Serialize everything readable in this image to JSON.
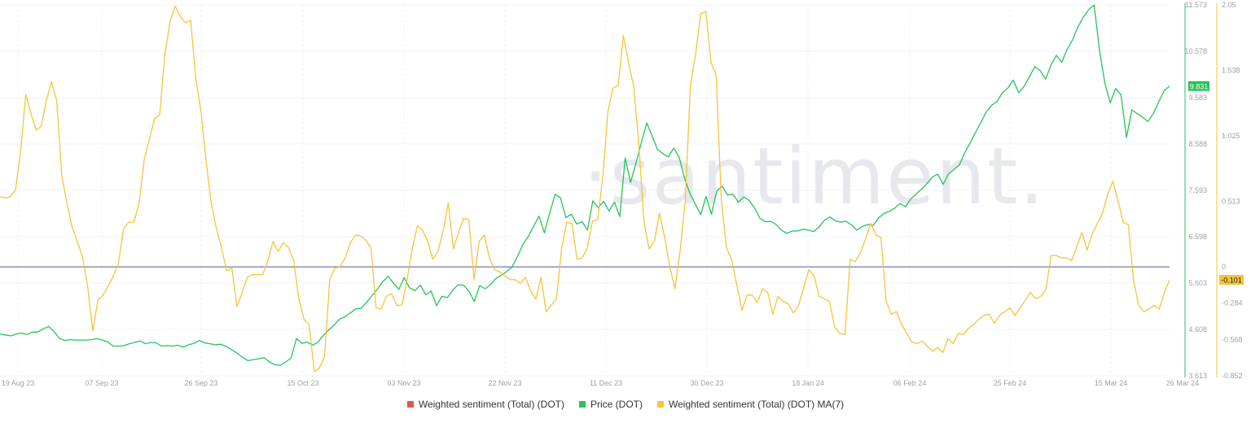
{
  "chart_data": {
    "type": "line",
    "watermark": "·santiment.",
    "x_labels": [
      "19 Aug 23",
      "07 Sep 23",
      "26 Sep 23",
      "15 Oct 23",
      "03 Nov 23",
      "22 Nov 23",
      "11 Dec 23",
      "30 Dec 23",
      "18 Jan 24",
      "06 Feb 24",
      "25 Feb 24",
      "15 Mar 24",
      "26 Mar 24"
    ],
    "price_axis": {
      "ticks": [
        "11.573",
        "10.578",
        "9.583",
        "8.588",
        "7.593",
        "6.598",
        "5.603",
        "4.608",
        "3.613"
      ],
      "ylim": [
        3.613,
        11.573
      ],
      "color": "#26c35a",
      "last_value_label": "9.831",
      "last_value": 9.831
    },
    "sentiment_axis": {
      "ticks": [
        "2.05",
        "1.538",
        "1.025",
        "0.513",
        "0",
        "-0.284",
        "-0.568",
        "-0.852"
      ],
      "ylim": [
        -0.852,
        2.05
      ],
      "color": "#f6c33b",
      "last_value_label": "-0.101",
      "last_value": -0.101
    },
    "zero_line": 0,
    "legend": [
      {
        "label": "Weighted sentiment (Total) (DOT)",
        "color": "#e5534b"
      },
      {
        "label": "Price (DOT)",
        "color": "#26c35a"
      },
      {
        "label": "Weighted sentiment (Total) (DOT) MA(7)",
        "color": "#f6c33b"
      }
    ],
    "series": [
      {
        "name": "Price (DOT)",
        "axis": "price",
        "color": "#26c35a",
        "values": [
          4.51,
          4.49,
          4.47,
          4.51,
          4.53,
          4.5,
          4.55,
          4.55,
          4.62,
          4.67,
          4.57,
          4.42,
          4.37,
          4.39,
          4.38,
          4.38,
          4.38,
          4.39,
          4.41,
          4.38,
          4.34,
          4.25,
          4.25,
          4.26,
          4.3,
          4.33,
          4.36,
          4.3,
          4.33,
          4.32,
          4.25,
          4.26,
          4.25,
          4.27,
          4.23,
          4.28,
          4.31,
          4.37,
          4.32,
          4.3,
          4.28,
          4.29,
          4.24,
          4.17,
          4.1,
          4.01,
          3.94,
          3.96,
          3.98,
          4.0,
          3.91,
          3.85,
          3.84,
          3.91,
          3.99,
          4.41,
          4.31,
          4.34,
          4.27,
          4.34,
          4.48,
          4.6,
          4.7,
          4.83,
          4.88,
          4.96,
          5.05,
          5.06,
          5.19,
          5.33,
          5.47,
          5.63,
          5.75,
          5.6,
          5.47,
          5.72,
          5.5,
          5.44,
          5.56,
          5.35,
          5.43,
          5.12,
          5.32,
          5.29,
          5.45,
          5.57,
          5.56,
          5.43,
          5.21,
          5.55,
          5.48,
          5.57,
          5.7,
          5.77,
          5.85,
          5.95,
          6.17,
          6.43,
          6.6,
          6.82,
          7.04,
          6.68,
          7.11,
          7.51,
          7.43,
          7.01,
          7.08,
          6.87,
          6.92,
          6.74,
          7.37,
          7.22,
          7.36,
          7.15,
          7.34,
          7.03,
          8.29,
          7.76,
          8.18,
          8.62,
          9.04,
          8.76,
          8.47,
          8.38,
          8.31,
          8.5,
          8.31,
          7.86,
          7.53,
          7.3,
          7.07,
          7.46,
          7.08,
          7.58,
          7.68,
          7.49,
          7.51,
          7.34,
          7.45,
          7.38,
          7.21,
          6.99,
          6.92,
          6.93,
          6.86,
          6.74,
          6.67,
          6.72,
          6.72,
          6.76,
          6.74,
          6.71,
          6.81,
          6.96,
          7.02,
          6.94,
          6.91,
          6.93,
          6.85,
          6.74,
          6.82,
          6.86,
          6.84,
          7.0,
          7.1,
          7.14,
          7.21,
          7.31,
          7.24,
          7.41,
          7.52,
          7.62,
          7.74,
          7.88,
          7.94,
          7.72,
          7.95,
          8.04,
          8.14,
          8.4,
          8.61,
          8.84,
          9.05,
          9.28,
          9.42,
          9.5,
          9.69,
          9.79,
          9.96,
          9.69,
          9.82,
          10.03,
          10.25,
          10.16,
          9.98,
          10.28,
          10.49,
          10.34,
          10.62,
          10.82,
          11.1,
          11.31,
          11.47,
          11.57,
          10.59,
          9.89,
          9.47,
          9.78,
          9.64,
          8.73,
          9.32,
          9.24,
          9.16,
          9.07,
          9.24,
          9.5,
          9.73,
          9.831
        ]
      },
      {
        "name": "Weighted sentiment (Total) (DOT) MA(7)",
        "axis": "sentiment",
        "color": "#f6c33b",
        "values": [
          0.55,
          0.54,
          0.55,
          0.6,
          0.9,
          1.35,
          1.2,
          1.07,
          1.1,
          1.3,
          1.45,
          1.3,
          0.71,
          0.5,
          0.31,
          0.2,
          0.08,
          -0.15,
          -0.5,
          -0.26,
          -0.22,
          -0.15,
          -0.07,
          0.03,
          0.3,
          0.35,
          0.35,
          0.5,
          0.84,
          1.0,
          1.16,
          1.19,
          1.66,
          1.92,
          2.04,
          1.96,
          1.91,
          1.93,
          1.47,
          1.22,
          0.83,
          0.5,
          0.3,
          0.15,
          -0.03,
          -0.01,
          -0.31,
          -0.2,
          -0.08,
          -0.06,
          -0.06,
          -0.06,
          0.05,
          0.2,
          0.12,
          0.19,
          0.15,
          0.05,
          -0.25,
          -0.41,
          -0.45,
          -0.82,
          -0.79,
          -0.7,
          -0.1,
          -0.01,
          0.0,
          0.07,
          0.19,
          0.25,
          0.24,
          0.21,
          0.15,
          -0.32,
          -0.33,
          -0.23,
          -0.21,
          -0.3,
          -0.3,
          -0.1,
          0.14,
          0.32,
          0.29,
          0.2,
          0.06,
          0.12,
          0.28,
          0.5,
          0.14,
          0.27,
          0.38,
          0.37,
          -0.1,
          0.2,
          0.25,
          0.07,
          -0.02,
          -0.04,
          -0.07,
          -0.1,
          -0.1,
          -0.13,
          -0.08,
          -0.19,
          -0.25,
          -0.08,
          -0.35,
          -0.3,
          -0.25,
          0.14,
          0.35,
          0.34,
          0.06,
          0.07,
          0.15,
          0.36,
          0.37,
          0.7,
          1.22,
          1.4,
          1.42,
          1.81,
          1.6,
          1.41,
          0.96,
          0.35,
          0.14,
          0.2,
          0.42,
          0.23,
          0.0,
          -0.17,
          0.12,
          0.52,
          1.42,
          1.66,
          1.98,
          2.0,
          1.6,
          1.5,
          0.53,
          0.15,
          0.06,
          -0.14,
          -0.34,
          -0.22,
          -0.22,
          -0.28,
          -0.17,
          -0.2,
          -0.37,
          -0.23,
          -0.27,
          -0.29,
          -0.36,
          -0.3,
          -0.16,
          -0.02,
          -0.07,
          -0.23,
          -0.25,
          -0.27,
          -0.47,
          -0.52,
          -0.53,
          0.06,
          0.04,
          0.11,
          0.22,
          0.34,
          0.25,
          0.23,
          -0.27,
          -0.37,
          -0.35,
          -0.45,
          -0.52,
          -0.59,
          -0.6,
          -0.58,
          -0.62,
          -0.66,
          -0.63,
          -0.67,
          -0.56,
          -0.6,
          -0.52,
          -0.53,
          -0.48,
          -0.45,
          -0.41,
          -0.38,
          -0.37,
          -0.44,
          -0.38,
          -0.35,
          -0.32,
          -0.38,
          -0.32,
          -0.26,
          -0.2,
          -0.25,
          -0.23,
          -0.18,
          0.09,
          0.09,
          0.07,
          0.07,
          0.05,
          0.16,
          0.27,
          0.13,
          0.26,
          0.34,
          0.42,
          0.57,
          0.67,
          0.52,
          0.35,
          0.33,
          -0.1,
          -0.3,
          -0.35,
          -0.33,
          -0.3,
          -0.33,
          -0.2,
          -0.101
        ]
      }
    ]
  }
}
